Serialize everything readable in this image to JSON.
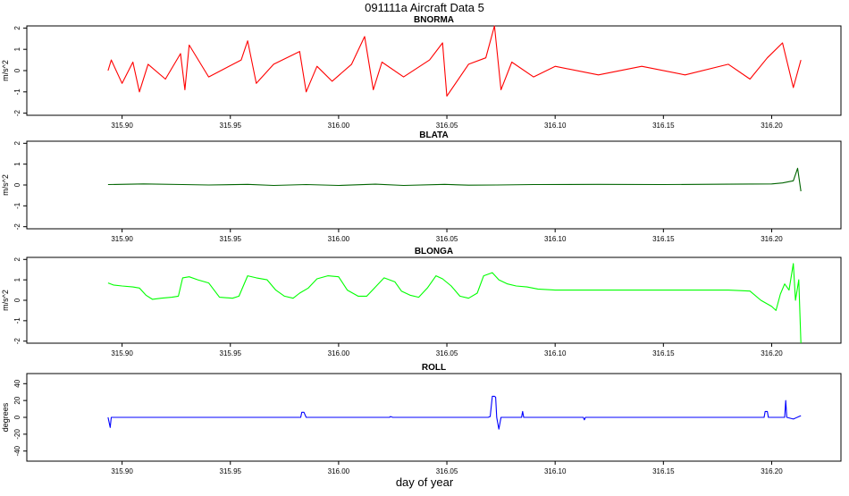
{
  "title": "091111a   Aircraft Data 5",
  "xlabel": "day of year",
  "chart_data": [
    {
      "type": "line",
      "title": "BNORMA",
      "ylabel": "m/s^2",
      "color": "#ff0000",
      "xlim": [
        315.856,
        316.232
      ],
      "ylim": [
        -2.1,
        2.1
      ],
      "yticks": [
        "-2",
        "-1",
        "0",
        "1",
        "2"
      ],
      "xticks": [
        "315.90",
        "315.95",
        "316.00",
        "316.05",
        "316.10",
        "316.15",
        "316.20"
      ],
      "series": [
        {
          "x": [
            315.8935,
            315.895,
            315.9,
            315.905,
            315.908,
            315.912,
            315.92,
            315.927,
            315.929,
            315.931,
            315.94,
            315.955,
            315.958,
            315.962,
            315.97,
            315.982,
            315.985,
            315.99,
            315.997,
            316.006,
            316.012,
            316.016,
            316.02,
            316.03,
            316.042,
            316.048,
            316.05,
            316.06,
            316.068,
            316.072,
            316.075,
            316.08,
            316.09,
            316.1,
            316.12,
            316.14,
            316.16,
            316.18,
            316.19,
            316.198,
            316.205,
            316.21,
            316.2135
          ],
          "y": [
            0.0,
            0.5,
            -0.6,
            0.4,
            -1.0,
            0.3,
            -0.4,
            0.8,
            -0.9,
            1.2,
            -0.3,
            0.5,
            1.4,
            -0.6,
            0.3,
            0.9,
            -1.0,
            0.2,
            -0.5,
            0.3,
            1.6,
            -0.9,
            0.4,
            -0.3,
            0.5,
            1.3,
            -1.2,
            0.3,
            0.6,
            2.1,
            -0.9,
            0.4,
            -0.3,
            0.2,
            -0.2,
            0.2,
            -0.2,
            0.3,
            -0.4,
            0.6,
            1.3,
            -0.8,
            0.5
          ]
        }
      ]
    },
    {
      "type": "line",
      "title": "BLATA",
      "ylabel": "m/s^2",
      "color": "#006400",
      "xlim": [
        315.856,
        316.232
      ],
      "ylim": [
        -2.1,
        2.1
      ],
      "yticks": [
        "-2",
        "-1",
        "0",
        "1",
        "2"
      ],
      "xticks": [
        "315.90",
        "315.95",
        "316.00",
        "316.05",
        "316.10",
        "316.15",
        "316.20"
      ],
      "series": [
        {
          "x": [
            315.8935,
            315.91,
            315.928,
            315.94,
            315.958,
            315.97,
            315.985,
            316.0,
            316.017,
            316.03,
            316.049,
            316.06,
            316.073,
            316.09,
            316.12,
            316.15,
            316.18,
            316.2,
            316.205,
            316.21,
            316.212,
            316.2135
          ],
          "y": [
            0.02,
            0.05,
            0.02,
            0.0,
            0.03,
            -0.02,
            0.02,
            -0.02,
            0.04,
            -0.02,
            0.03,
            -0.01,
            0.0,
            0.02,
            0.03,
            0.02,
            0.04,
            0.05,
            0.1,
            0.2,
            0.8,
            -0.3
          ]
        }
      ]
    },
    {
      "type": "line",
      "title": "BLONGA",
      "ylabel": "m/s^2",
      "color": "#00ff00",
      "xlim": [
        315.856,
        316.232
      ],
      "ylim": [
        -2.1,
        2.1
      ],
      "yticks": [
        "-2",
        "-1",
        "0",
        "1",
        "2"
      ],
      "xticks": [
        "315.90",
        "315.95",
        "316.00",
        "316.05",
        "316.10",
        "316.15",
        "316.20"
      ],
      "series": [
        {
          "x": [
            315.8935,
            315.896,
            315.9,
            315.905,
            315.908,
            315.911,
            315.914,
            315.918,
            315.923,
            315.926,
            315.928,
            315.931,
            315.935,
            315.94,
            315.945,
            315.951,
            315.954,
            315.958,
            315.962,
            315.967,
            315.971,
            315.975,
            315.979,
            315.982,
            315.986,
            315.99,
            315.995,
            316.0,
            316.004,
            316.009,
            316.013,
            316.017,
            316.021,
            316.026,
            316.029,
            316.033,
            316.037,
            316.041,
            316.045,
            316.048,
            316.052,
            316.056,
            316.06,
            316.064,
            316.067,
            316.071,
            316.074,
            316.078,
            316.082,
            316.087,
            316.092,
            316.1,
            316.12,
            316.15,
            316.18,
            316.19,
            316.195,
            316.2,
            316.202,
            316.204,
            316.206,
            316.208,
            316.21,
            316.211,
            316.2125,
            316.2135
          ],
          "y": [
            0.85,
            0.75,
            0.7,
            0.65,
            0.6,
            0.25,
            0.05,
            0.1,
            0.15,
            0.2,
            1.1,
            1.15,
            1.0,
            0.85,
            0.15,
            0.1,
            0.2,
            1.2,
            1.1,
            1.0,
            0.5,
            0.2,
            0.1,
            0.35,
            0.6,
            1.05,
            1.2,
            1.15,
            0.5,
            0.2,
            0.2,
            0.65,
            1.1,
            0.9,
            0.45,
            0.25,
            0.15,
            0.6,
            1.2,
            1.05,
            0.7,
            0.2,
            0.1,
            0.35,
            1.2,
            1.35,
            1.0,
            0.8,
            0.7,
            0.65,
            0.55,
            0.5,
            0.5,
            0.5,
            0.5,
            0.45,
            0.0,
            -0.3,
            -0.5,
            0.3,
            0.8,
            0.5,
            1.8,
            0.0,
            1.0,
            -2.1
          ]
        }
      ]
    },
    {
      "type": "line",
      "title": "ROLL",
      "ylabel": "degrees",
      "color": "#0000ff",
      "xlim": [
        315.856,
        316.232
      ],
      "ylim": [
        -52,
        52
      ],
      "yticks": [
        "-40",
        "-20",
        "0",
        "20",
        "40"
      ],
      "xticks": [
        "315.90",
        "315.95",
        "316.00",
        "316.05",
        "316.10",
        "316.15",
        "316.20"
      ],
      "series": [
        {
          "x": [
            315.8935,
            315.8945,
            315.895,
            315.8955,
            315.92,
            315.95,
            315.9825,
            315.983,
            315.984,
            315.985,
            316.0,
            316.0235,
            316.024,
            316.025,
            316.05,
            316.069,
            316.07,
            316.071,
            316.072,
            316.0725,
            316.073,
            316.074,
            316.075,
            316.08,
            316.0845,
            316.085,
            316.0855,
            316.1,
            316.113,
            316.1135,
            316.114,
            316.15,
            316.1965,
            316.197,
            316.198,
            316.1985,
            316.2,
            316.206,
            316.2065,
            316.207,
            316.21,
            316.2135
          ],
          "y": [
            0,
            -12,
            0,
            0,
            0,
            0,
            0,
            6,
            6,
            0,
            0,
            0,
            1,
            0,
            0,
            0,
            1,
            25,
            25,
            24,
            0,
            -14,
            0,
            0,
            0,
            7,
            0,
            0,
            0,
            -3,
            0,
            0,
            0,
            7,
            7,
            0,
            0,
            0,
            20,
            0,
            -2,
            2
          ]
        }
      ]
    }
  ]
}
